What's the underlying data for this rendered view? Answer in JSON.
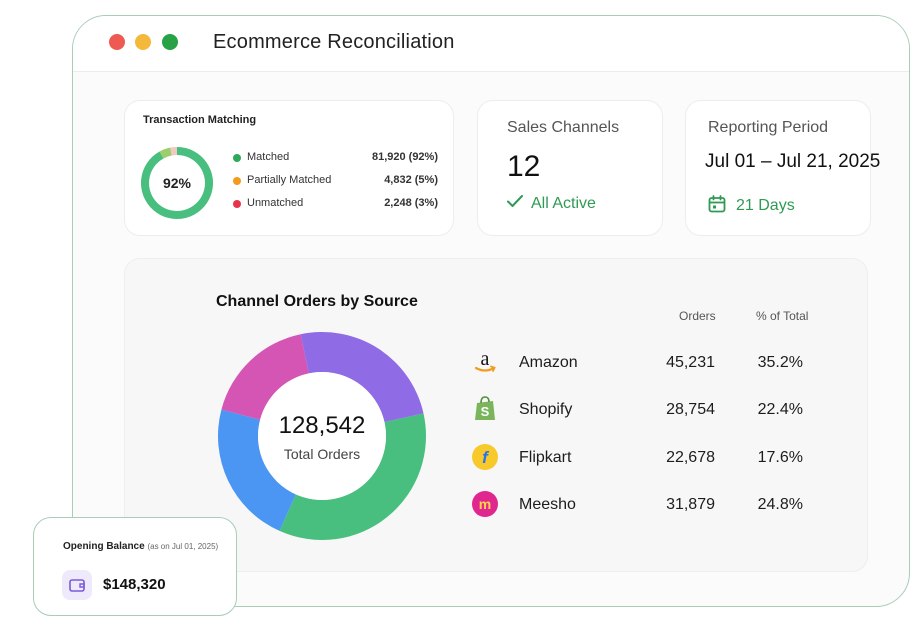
{
  "window": {
    "title": "Ecommerce Reconciliation"
  },
  "transaction_matching": {
    "title": "Transaction Matching",
    "percent_label": "92%",
    "items": [
      {
        "label": "Matched",
        "value": "81,920 (92%)",
        "color": "#2fa85b",
        "fraction": 0.92
      },
      {
        "label": "Partially Matched",
        "value": "4,832 (5%)",
        "color": "#f39b1f",
        "fraction": 0.05
      },
      {
        "label": "Unmatched",
        "value": "2,248 (3%)",
        "color": "#e8334a",
        "fraction": 0.03
      }
    ]
  },
  "sales_channels": {
    "title": "Sales Channels",
    "count": "12",
    "status": "All Active"
  },
  "reporting_period": {
    "title": "Reporting Period",
    "range": "Jul 01 – Jul 21, 2025",
    "days": "21 Days"
  },
  "channel_orders": {
    "title": "Channel Orders by Source",
    "total": "128,542",
    "total_label": "Total Orders",
    "columns": {
      "orders": "Orders",
      "pct": "% of Total"
    },
    "rows": [
      {
        "name": "Amazon",
        "orders": "45,231",
        "pct": "35.2%",
        "icon": "amazon-icon"
      },
      {
        "name": "Shopify",
        "orders": "28,754",
        "pct": "22.4%",
        "icon": "shopify-icon"
      },
      {
        "name": "Flipkart",
        "orders": "22,678",
        "pct": "17.6%",
        "icon": "flipkart-icon"
      },
      {
        "name": "Meesho",
        "orders": "31,879",
        "pct": "24.8%",
        "icon": "meesho-icon"
      }
    ]
  },
  "chart_data": {
    "type": "pie",
    "categories": [
      "Amazon",
      "Shopify",
      "Flipkart",
      "Meesho"
    ],
    "values": [
      35.2,
      22.4,
      17.6,
      24.8
    ],
    "title": "Channel Orders by Source",
    "colors": [
      "#48bf7e",
      "#4b95f3",
      "#d455b4",
      "#8f6be6"
    ]
  },
  "opening_balance": {
    "title": "Opening Balance",
    "note": "(as on Jul 01, 2025)",
    "amount": "$148,320"
  }
}
